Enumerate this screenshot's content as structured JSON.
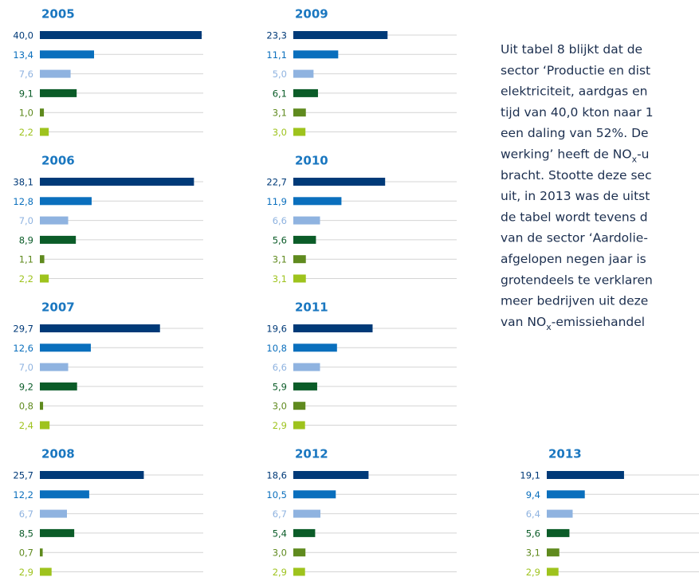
{
  "chart_data": {
    "type": "bar",
    "colors": [
      "#003a78",
      "#0a6fbd",
      "#8fb3e0",
      "#0b5c28",
      "#5f8a1e",
      "#9ec31d"
    ],
    "xlim": [
      0,
      40
    ],
    "grid": true,
    "panels": [
      {
        "year": "2005",
        "values": [
          40.0,
          13.4,
          7.6,
          9.1,
          1.0,
          2.2
        ],
        "value_labels": [
          "40,0",
          "13,4",
          "7,6",
          "9,1",
          "1,0",
          "2,2"
        ]
      },
      {
        "year": "2006",
        "values": [
          38.1,
          12.8,
          7.0,
          8.9,
          1.1,
          2.2
        ],
        "value_labels": [
          "38,1",
          "12,8",
          "7,0",
          "8,9",
          "1,1",
          "2,2"
        ]
      },
      {
        "year": "2007",
        "values": [
          29.7,
          12.6,
          7.0,
          9.2,
          0.8,
          2.4
        ],
        "value_labels": [
          "29,7",
          "12,6",
          "7,0",
          "9,2",
          "0,8",
          "2,4"
        ]
      },
      {
        "year": "2008",
        "values": [
          25.7,
          12.2,
          6.7,
          8.5,
          0.7,
          2.9
        ],
        "value_labels": [
          "25,7",
          "12,2",
          "6,7",
          "8,5",
          "0,7",
          "2,9"
        ]
      },
      {
        "year": "2009",
        "values": [
          23.3,
          11.1,
          5.0,
          6.1,
          3.1,
          3.0
        ],
        "value_labels": [
          "23,3",
          "11,1",
          "5,0",
          "6,1",
          "3,1",
          "3,0"
        ]
      },
      {
        "year": "2010",
        "values": [
          22.7,
          11.9,
          6.6,
          5.6,
          3.1,
          3.1
        ],
        "value_labels": [
          "22,7",
          "11,9",
          "6,6",
          "5,6",
          "3,1",
          "3,1"
        ]
      },
      {
        "year": "2011",
        "values": [
          19.6,
          10.8,
          6.6,
          5.9,
          3.0,
          2.9
        ],
        "value_labels": [
          "19,6",
          "10,8",
          "6,6",
          "5,9",
          "3,0",
          "2,9"
        ]
      },
      {
        "year": "2012",
        "values": [
          18.6,
          10.5,
          6.7,
          5.4,
          3.0,
          2.9
        ],
        "value_labels": [
          "18,6",
          "10,5",
          "6,7",
          "5,4",
          "3,0",
          "2,9"
        ]
      },
      {
        "year": "2013",
        "values": [
          19.1,
          9.4,
          6.4,
          5.6,
          3.1,
          2.9
        ],
        "value_labels": [
          "19,1",
          "9,4",
          "6,4",
          "5,6",
          "3,1",
          "2,9"
        ]
      }
    ]
  },
  "text_lines": [
    [
      "Uit tabel 8 blijkt dat de"
    ],
    [
      "sector ‘Productie en dist"
    ],
    [
      "elektriciteit, aardgas en"
    ],
    [
      "tijd van 40,0 kton naar 1"
    ],
    [
      "een daling van 52%. De"
    ],
    [
      "werking’ heeft de NO",
      "x",
      "-u"
    ],
    [
      "bracht. Stootte deze sec"
    ],
    [
      "uit, in 2013 was de uitst"
    ],
    [
      "de tabel wordt tevens d"
    ],
    [
      "van de sector ‘Aardolie-"
    ],
    [
      "afgelopen negen jaar is"
    ],
    [
      "grotendeels te verklaren"
    ],
    [
      "meer bedrijven uit deze"
    ],
    [
      "van NO",
      "x",
      "-emissiehandel"
    ]
  ]
}
